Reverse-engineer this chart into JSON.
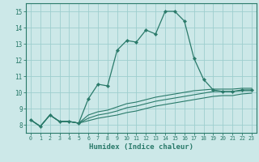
{
  "bg_color": "#cce8e8",
  "grid_color": "#9ecece",
  "line_color": "#2a7a6a",
  "xlabel": "Humidex (Indice chaleur)",
  "xlim": [
    -0.5,
    23.5
  ],
  "ylim": [
    7.5,
    15.5
  ],
  "yticks": [
    8,
    9,
    10,
    11,
    12,
    13,
    14,
    15
  ],
  "xticks": [
    0,
    1,
    2,
    3,
    4,
    5,
    6,
    7,
    8,
    9,
    10,
    11,
    12,
    13,
    14,
    15,
    16,
    17,
    18,
    19,
    20,
    21,
    22,
    23
  ],
  "main_x": [
    0,
    1,
    2,
    3,
    4,
    5,
    6,
    7,
    8,
    9,
    10,
    11,
    12,
    13,
    14,
    15,
    16,
    17,
    18,
    19,
    20,
    21,
    22,
    23
  ],
  "main_y": [
    8.3,
    7.9,
    8.6,
    8.2,
    8.2,
    8.1,
    9.6,
    10.5,
    10.4,
    12.6,
    13.2,
    13.1,
    13.85,
    13.6,
    15.0,
    15.0,
    14.4,
    12.1,
    10.8,
    10.15,
    10.05,
    10.05,
    10.15,
    10.15
  ],
  "line2_x": [
    0,
    1,
    2,
    3,
    4,
    5,
    6,
    7,
    8,
    9,
    10,
    11,
    12,
    13,
    14,
    15,
    16,
    17,
    18,
    19,
    20,
    21,
    22,
    23
  ],
  "line2_y": [
    8.3,
    7.9,
    8.6,
    8.2,
    8.2,
    8.1,
    8.6,
    8.8,
    8.9,
    9.1,
    9.3,
    9.4,
    9.55,
    9.7,
    9.8,
    9.9,
    10.0,
    10.1,
    10.15,
    10.2,
    10.2,
    10.2,
    10.25,
    10.25
  ],
  "line3_x": [
    0,
    1,
    2,
    3,
    4,
    5,
    6,
    7,
    8,
    9,
    10,
    11,
    12,
    13,
    14,
    15,
    16,
    17,
    18,
    19,
    20,
    21,
    22,
    23
  ],
  "line3_y": [
    8.3,
    7.9,
    8.6,
    8.2,
    8.2,
    8.1,
    8.4,
    8.6,
    8.7,
    8.85,
    9.05,
    9.15,
    9.3,
    9.45,
    9.55,
    9.65,
    9.75,
    9.85,
    9.95,
    10.05,
    10.05,
    10.05,
    10.1,
    10.1
  ],
  "line4_x": [
    0,
    1,
    2,
    3,
    4,
    5,
    6,
    7,
    8,
    9,
    10,
    11,
    12,
    13,
    14,
    15,
    16,
    17,
    18,
    19,
    20,
    21,
    22,
    23
  ],
  "line4_y": [
    8.3,
    7.9,
    8.6,
    8.2,
    8.2,
    8.1,
    8.25,
    8.4,
    8.5,
    8.6,
    8.75,
    8.85,
    9.0,
    9.15,
    9.25,
    9.35,
    9.45,
    9.55,
    9.65,
    9.75,
    9.8,
    9.8,
    9.9,
    9.95
  ]
}
